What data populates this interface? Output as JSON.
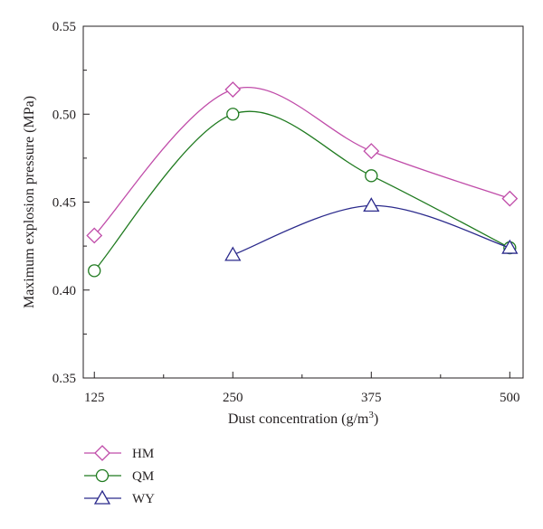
{
  "chart_data": {
    "type": "line",
    "xlabel": "Dust concentration (g/m",
    "xlabel_sup": "3",
    "xlabel_end": ")",
    "ylabel": "Maximum explosion pressure (MPa)",
    "x_ticks": [
      125,
      250,
      375,
      500
    ],
    "y_ticks": [
      "0.35",
      "0.40",
      "0.45",
      "0.50",
      "0.55"
    ],
    "xlim": [
      115,
      512
    ],
    "ylim": [
      0.35,
      0.55
    ],
    "grid": false,
    "legend_position": "bottom-left",
    "series": [
      {
        "name": "HM",
        "marker": "diamond",
        "color": "#c04ca9",
        "x": [
          125,
          250,
          375,
          500
        ],
        "y": [
          0.431,
          0.514,
          0.479,
          0.452
        ]
      },
      {
        "name": "QM",
        "marker": "circle",
        "color": "#1f7a1f",
        "x": [
          125,
          250,
          375,
          500
        ],
        "y": [
          0.411,
          0.5,
          0.465,
          0.424
        ]
      },
      {
        "name": "WY",
        "marker": "triangle",
        "color": "#2b2a8c",
        "x": [
          250,
          375,
          500
        ],
        "y": [
          0.42,
          0.448,
          0.424
        ]
      }
    ]
  }
}
